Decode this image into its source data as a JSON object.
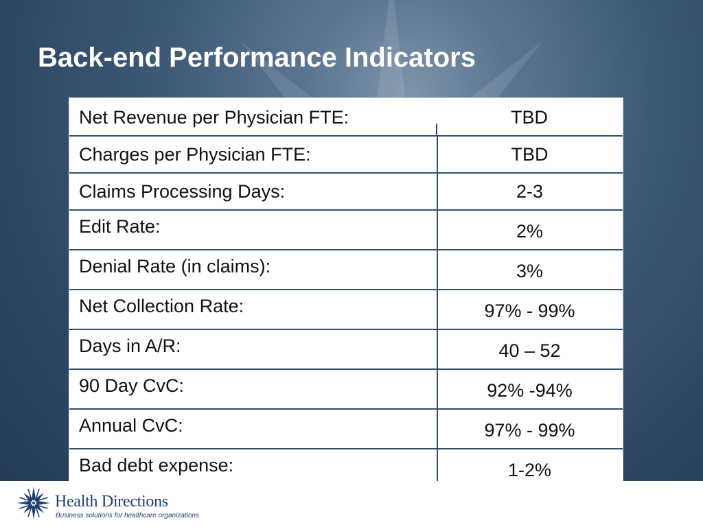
{
  "slide": {
    "title": "Back-end Performance Indicators"
  },
  "table": {
    "rows": [
      {
        "label": "Net Revenue per Physician FTE:",
        "value": "TBD"
      },
      {
        "label": "Charges per Physician FTE:",
        "value": "TBD"
      },
      {
        "label": "Claims Processing Days:",
        "value": "2-3"
      },
      {
        "label": "Edit Rate:",
        "value": "2%"
      },
      {
        "label": "Denial Rate (in claims):",
        "value": "3%"
      },
      {
        "label": "Net Collection Rate:",
        "value": "97% - 99%"
      },
      {
        "label": "Days in A/R:",
        "value": "40 – 52"
      },
      {
        "label": "90 Day CvC:",
        "value": "92% -94%"
      },
      {
        "label": "Annual CvC:",
        "value": "97% - 99%"
      },
      {
        "label": "Bad debt expense:",
        "value": "1-2%"
      }
    ]
  },
  "footer": {
    "logo_icon": "star-burst-icon",
    "company_name": "Health Directions",
    "tagline": "Business solutions for healthcare organizations"
  },
  "colors": {
    "background": "#3e5a77",
    "table_border": "#32506f",
    "logo_blue": "#1f3f73"
  }
}
